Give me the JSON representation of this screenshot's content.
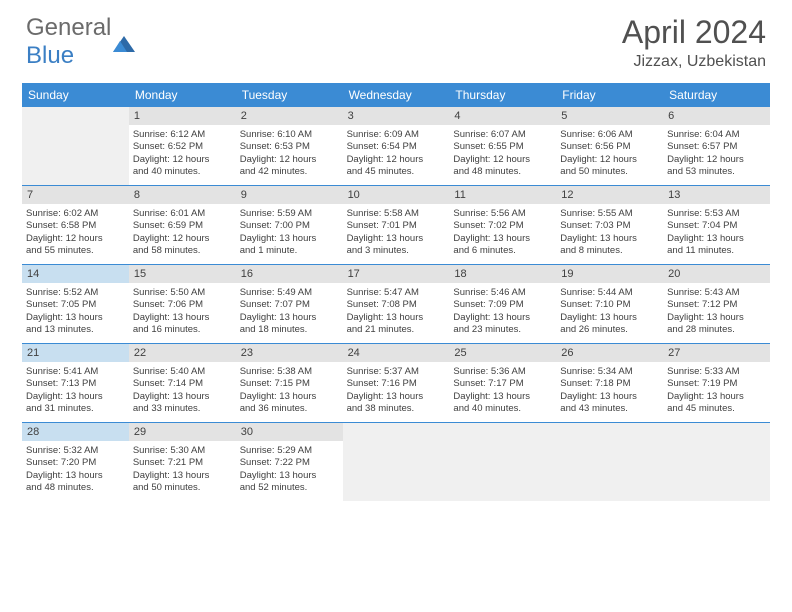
{
  "logo": {
    "text_gray": "General",
    "text_blue": "Blue"
  },
  "title": "April 2024",
  "location": "Jizzax, Uzbekistan",
  "day_headers": [
    "Sunday",
    "Monday",
    "Tuesday",
    "Wednesday",
    "Thursday",
    "Friday",
    "Saturday"
  ],
  "colors": {
    "header_bg": "#3b8bd4",
    "header_text": "#ffffff",
    "daynum_bg": "#e3e3e3",
    "daynum_highlight_bg": "#c8dff0",
    "border": "#3b8bd4",
    "empty_bg": "#f0f0f0",
    "text": "#404040"
  },
  "weeks": [
    [
      {
        "empty": true
      },
      {
        "day": "1",
        "sunrise": "Sunrise: 6:12 AM",
        "sunset": "Sunset: 6:52 PM",
        "dl1": "Daylight: 12 hours",
        "dl2": "and 40 minutes."
      },
      {
        "day": "2",
        "sunrise": "Sunrise: 6:10 AM",
        "sunset": "Sunset: 6:53 PM",
        "dl1": "Daylight: 12 hours",
        "dl2": "and 42 minutes."
      },
      {
        "day": "3",
        "sunrise": "Sunrise: 6:09 AM",
        "sunset": "Sunset: 6:54 PM",
        "dl1": "Daylight: 12 hours",
        "dl2": "and 45 minutes."
      },
      {
        "day": "4",
        "sunrise": "Sunrise: 6:07 AM",
        "sunset": "Sunset: 6:55 PM",
        "dl1": "Daylight: 12 hours",
        "dl2": "and 48 minutes."
      },
      {
        "day": "5",
        "sunrise": "Sunrise: 6:06 AM",
        "sunset": "Sunset: 6:56 PM",
        "dl1": "Daylight: 12 hours",
        "dl2": "and 50 minutes."
      },
      {
        "day": "6",
        "sunrise": "Sunrise: 6:04 AM",
        "sunset": "Sunset: 6:57 PM",
        "dl1": "Daylight: 12 hours",
        "dl2": "and 53 minutes."
      }
    ],
    [
      {
        "day": "7",
        "sunrise": "Sunrise: 6:02 AM",
        "sunset": "Sunset: 6:58 PM",
        "dl1": "Daylight: 12 hours",
        "dl2": "and 55 minutes."
      },
      {
        "day": "8",
        "sunrise": "Sunrise: 6:01 AM",
        "sunset": "Sunset: 6:59 PM",
        "dl1": "Daylight: 12 hours",
        "dl2": "and 58 minutes."
      },
      {
        "day": "9",
        "sunrise": "Sunrise: 5:59 AM",
        "sunset": "Sunset: 7:00 PM",
        "dl1": "Daylight: 13 hours",
        "dl2": "and 1 minute."
      },
      {
        "day": "10",
        "sunrise": "Sunrise: 5:58 AM",
        "sunset": "Sunset: 7:01 PM",
        "dl1": "Daylight: 13 hours",
        "dl2": "and 3 minutes."
      },
      {
        "day": "11",
        "sunrise": "Sunrise: 5:56 AM",
        "sunset": "Sunset: 7:02 PM",
        "dl1": "Daylight: 13 hours",
        "dl2": "and 6 minutes."
      },
      {
        "day": "12",
        "sunrise": "Sunrise: 5:55 AM",
        "sunset": "Sunset: 7:03 PM",
        "dl1": "Daylight: 13 hours",
        "dl2": "and 8 minutes."
      },
      {
        "day": "13",
        "sunrise": "Sunrise: 5:53 AM",
        "sunset": "Sunset: 7:04 PM",
        "dl1": "Daylight: 13 hours",
        "dl2": "and 11 minutes."
      }
    ],
    [
      {
        "day": "14",
        "highlight": true,
        "sunrise": "Sunrise: 5:52 AM",
        "sunset": "Sunset: 7:05 PM",
        "dl1": "Daylight: 13 hours",
        "dl2": "and 13 minutes."
      },
      {
        "day": "15",
        "sunrise": "Sunrise: 5:50 AM",
        "sunset": "Sunset: 7:06 PM",
        "dl1": "Daylight: 13 hours",
        "dl2": "and 16 minutes."
      },
      {
        "day": "16",
        "sunrise": "Sunrise: 5:49 AM",
        "sunset": "Sunset: 7:07 PM",
        "dl1": "Daylight: 13 hours",
        "dl2": "and 18 minutes."
      },
      {
        "day": "17",
        "sunrise": "Sunrise: 5:47 AM",
        "sunset": "Sunset: 7:08 PM",
        "dl1": "Daylight: 13 hours",
        "dl2": "and 21 minutes."
      },
      {
        "day": "18",
        "sunrise": "Sunrise: 5:46 AM",
        "sunset": "Sunset: 7:09 PM",
        "dl1": "Daylight: 13 hours",
        "dl2": "and 23 minutes."
      },
      {
        "day": "19",
        "sunrise": "Sunrise: 5:44 AM",
        "sunset": "Sunset: 7:10 PM",
        "dl1": "Daylight: 13 hours",
        "dl2": "and 26 minutes."
      },
      {
        "day": "20",
        "sunrise": "Sunrise: 5:43 AM",
        "sunset": "Sunset: 7:12 PM",
        "dl1": "Daylight: 13 hours",
        "dl2": "and 28 minutes."
      }
    ],
    [
      {
        "day": "21",
        "highlight": true,
        "sunrise": "Sunrise: 5:41 AM",
        "sunset": "Sunset: 7:13 PM",
        "dl1": "Daylight: 13 hours",
        "dl2": "and 31 minutes."
      },
      {
        "day": "22",
        "sunrise": "Sunrise: 5:40 AM",
        "sunset": "Sunset: 7:14 PM",
        "dl1": "Daylight: 13 hours",
        "dl2": "and 33 minutes."
      },
      {
        "day": "23",
        "sunrise": "Sunrise: 5:38 AM",
        "sunset": "Sunset: 7:15 PM",
        "dl1": "Daylight: 13 hours",
        "dl2": "and 36 minutes."
      },
      {
        "day": "24",
        "sunrise": "Sunrise: 5:37 AM",
        "sunset": "Sunset: 7:16 PM",
        "dl1": "Daylight: 13 hours",
        "dl2": "and 38 minutes."
      },
      {
        "day": "25",
        "sunrise": "Sunrise: 5:36 AM",
        "sunset": "Sunset: 7:17 PM",
        "dl1": "Daylight: 13 hours",
        "dl2": "and 40 minutes."
      },
      {
        "day": "26",
        "sunrise": "Sunrise: 5:34 AM",
        "sunset": "Sunset: 7:18 PM",
        "dl1": "Daylight: 13 hours",
        "dl2": "and 43 minutes."
      },
      {
        "day": "27",
        "sunrise": "Sunrise: 5:33 AM",
        "sunset": "Sunset: 7:19 PM",
        "dl1": "Daylight: 13 hours",
        "dl2": "and 45 minutes."
      }
    ],
    [
      {
        "day": "28",
        "highlight": true,
        "sunrise": "Sunrise: 5:32 AM",
        "sunset": "Sunset: 7:20 PM",
        "dl1": "Daylight: 13 hours",
        "dl2": "and 48 minutes."
      },
      {
        "day": "29",
        "sunrise": "Sunrise: 5:30 AM",
        "sunset": "Sunset: 7:21 PM",
        "dl1": "Daylight: 13 hours",
        "dl2": "and 50 minutes."
      },
      {
        "day": "30",
        "sunrise": "Sunrise: 5:29 AM",
        "sunset": "Sunset: 7:22 PM",
        "dl1": "Daylight: 13 hours",
        "dl2": "and 52 minutes."
      },
      {
        "empty": true
      },
      {
        "empty": true
      },
      {
        "empty": true
      },
      {
        "empty": true
      }
    ]
  ]
}
